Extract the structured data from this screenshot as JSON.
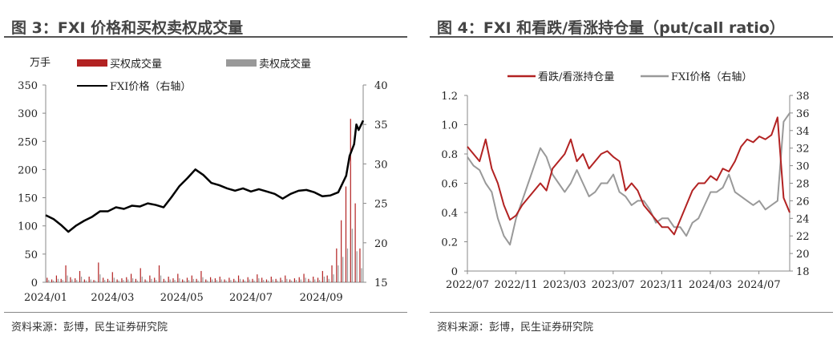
{
  "fig3": {
    "title": "图 3：FXI 价格和买权卖权成交量",
    "source": "资料来源：彭博，民生证券研究院"
  },
  "fig4": {
    "title": "图 4：FXI 和看跌/看涨持仓量（put/call ratio）",
    "source": "资料来源：彭博，民生证券研究院"
  },
  "chart_data": [
    {
      "type": "bar",
      "title": "FXI 价格和买权卖权成交量",
      "ylabel": "万手",
      "ylim": [
        0,
        350
      ],
      "yticks": [
        "0",
        "50",
        "100",
        "150",
        "200",
        "250",
        "300",
        "350"
      ],
      "y2lim": [
        15,
        40
      ],
      "y2ticks": [
        "15",
        "20",
        "25",
        "30",
        "35",
        "40"
      ],
      "xlim": [
        "2024-01-02",
        "2024-10-08"
      ],
      "xticks": [
        "2024/01",
        "2024/03",
        "2024/05",
        "2024/07",
        "2024/09"
      ],
      "legend": [
        "买权成交量",
        "卖权成交量",
        "FXI价格（右轴）"
      ],
      "legend_position": "top",
      "colors": {
        "call": "#b22222",
        "put": "#999999",
        "price": "#000000"
      },
      "bars_call": [
        8,
        5,
        12,
        6,
        30,
        9,
        7,
        20,
        5,
        10,
        4,
        35,
        8,
        6,
        18,
        5,
        7,
        9,
        15,
        6,
        25,
        5,
        12,
        8,
        30,
        6,
        10,
        7,
        15,
        5,
        8,
        12,
        6,
        20,
        5,
        9,
        7,
        10,
        5,
        8,
        6,
        12,
        5,
        9,
        6,
        14,
        8,
        5,
        10,
        6,
        8,
        12,
        5,
        7,
        9,
        15,
        6,
        10,
        8,
        20,
        12,
        30,
        60,
        110,
        170,
        290,
        140,
        60
      ],
      "bars_put": [
        4,
        3,
        6,
        4,
        12,
        5,
        4,
        10,
        3,
        5,
        3,
        14,
        4,
        3,
        8,
        3,
        4,
        5,
        7,
        3,
        10,
        3,
        6,
        4,
        12,
        3,
        5,
        4,
        7,
        3,
        4,
        6,
        3,
        9,
        3,
        5,
        4,
        5,
        3,
        4,
        3,
        6,
        3,
        5,
        3,
        7,
        4,
        3,
        5,
        3,
        4,
        6,
        3,
        4,
        5,
        8,
        3,
        5,
        4,
        10,
        6,
        14,
        30,
        45,
        60,
        95,
        55,
        25
      ],
      "price_dates": [
        "2024-01-02",
        "2024-01-09",
        "2024-01-16",
        "2024-01-22",
        "2024-01-29",
        "2024-02-05",
        "2024-02-12",
        "2024-02-19",
        "2024-02-26",
        "2024-03-04",
        "2024-03-11",
        "2024-03-18",
        "2024-03-25",
        "2024-04-01",
        "2024-04-08",
        "2024-04-15",
        "2024-04-22",
        "2024-04-29",
        "2024-05-06",
        "2024-05-13",
        "2024-05-20",
        "2024-05-27",
        "2024-06-03",
        "2024-06-10",
        "2024-06-17",
        "2024-06-24",
        "2024-07-01",
        "2024-07-08",
        "2024-07-15",
        "2024-07-22",
        "2024-07-29",
        "2024-08-05",
        "2024-08-12",
        "2024-08-19",
        "2024-08-26",
        "2024-09-02",
        "2024-09-09",
        "2024-09-16",
        "2024-09-23",
        "2024-09-26",
        "2024-09-30",
        "2024-10-02",
        "2024-10-04",
        "2024-10-08"
      ],
      "price": [
        23.5,
        23.0,
        22.2,
        21.4,
        22.2,
        22.8,
        23.3,
        24.0,
        24.0,
        24.5,
        24.3,
        24.7,
        24.6,
        25.0,
        24.8,
        24.5,
        25.8,
        27.2,
        28.2,
        29.3,
        28.6,
        27.6,
        27.3,
        26.9,
        26.6,
        26.9,
        26.5,
        26.8,
        26.5,
        26.2,
        25.6,
        26.2,
        26.6,
        26.7,
        26.4,
        25.9,
        26.0,
        26.4,
        28.5,
        31.0,
        32.5,
        35.0,
        34.3,
        35.5
      ]
    },
    {
      "type": "line",
      "title": "FXI 和看跌/看涨持仓量（put/call ratio）",
      "ylim": [
        0,
        1.2
      ],
      "yticks": [
        "0",
        "0.2",
        "0.4",
        "0.6",
        "0.8",
        "1.0",
        "1.2"
      ],
      "y2lim": [
        18,
        38
      ],
      "y2ticks": [
        "18",
        "20",
        "22",
        "24",
        "26",
        "28",
        "30",
        "32",
        "34",
        "36",
        "38"
      ],
      "xticks": [
        "2022/07",
        "2022/11",
        "2023/03",
        "2023/07",
        "2023/11",
        "2024/03",
        "2024/07"
      ],
      "legend": [
        "看跌/看涨持仓量",
        "FXI价格（右轴）"
      ],
      "legend_position": "top",
      "colors": {
        "ratio": "#b22222",
        "price": "#999999"
      },
      "ratio": [
        0.85,
        0.8,
        0.75,
        0.9,
        0.7,
        0.6,
        0.45,
        0.35,
        0.38,
        0.45,
        0.5,
        0.55,
        0.6,
        0.55,
        0.7,
        0.75,
        0.8,
        0.9,
        0.75,
        0.8,
        0.7,
        0.75,
        0.8,
        0.82,
        0.78,
        0.75,
        0.55,
        0.6,
        0.55,
        0.45,
        0.4,
        0.35,
        0.3,
        0.3,
        0.25,
        0.35,
        0.45,
        0.55,
        0.6,
        0.6,
        0.65,
        0.62,
        0.7,
        0.68,
        0.75,
        0.85,
        0.9,
        0.88,
        0.92,
        0.9,
        0.93,
        1.05,
        0.5,
        0.4
      ],
      "price": [
        31,
        30,
        29.5,
        28,
        27,
        24,
        22,
        21,
        24,
        26,
        28,
        30,
        32,
        31,
        29,
        28,
        27,
        28,
        29.5,
        28,
        26.5,
        27,
        28,
        28,
        29,
        27,
        26.5,
        25.5,
        26,
        26,
        25,
        23.5,
        24,
        24,
        23,
        23,
        22,
        23.5,
        24,
        25.5,
        27,
        27,
        27.5,
        29,
        27,
        26.5,
        26,
        25.5,
        26,
        25,
        25.5,
        26,
        35,
        36
      ]
    }
  ]
}
